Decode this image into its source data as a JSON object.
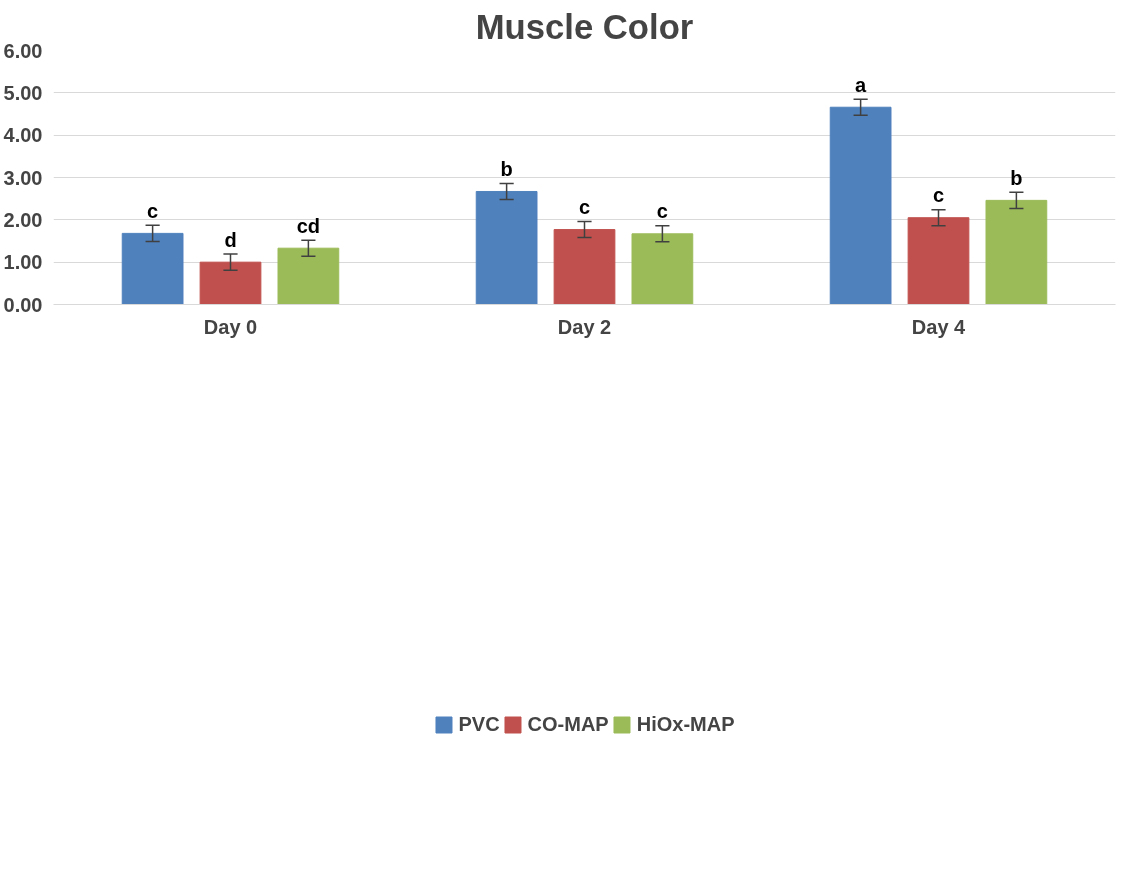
{
  "chart_data": {
    "type": "bar",
    "title": "Muscle Color",
    "categories": [
      "Day 0",
      "Day 2",
      "Day 4"
    ],
    "series": [
      {
        "name": "PVC",
        "color": "#4f81bd",
        "values": [
          1.68,
          2.67,
          4.66
        ],
        "errors": [
          0.19,
          0.19,
          0.19
        ],
        "value_labels": [
          "c",
          "b",
          "a"
        ]
      },
      {
        "name": "CO-MAP",
        "color": "#c0504d",
        "values": [
          1.0,
          1.77,
          2.05
        ],
        "errors": [
          0.19,
          0.19,
          0.19
        ],
        "value_labels": [
          "d",
          "c",
          "c"
        ]
      },
      {
        "name": "HiOx-MAP",
        "color": "#9bbb59",
        "values": [
          1.33,
          1.67,
          2.46
        ],
        "errors": [
          0.19,
          0.19,
          0.19
        ],
        "value_labels": [
          "cd",
          "c",
          "b"
        ]
      }
    ],
    "ylim": [
      0,
      6
    ],
    "yticks": [
      {
        "value": 0,
        "label": "0.00"
      },
      {
        "value": 1,
        "label": "1.00"
      },
      {
        "value": 2,
        "label": "2.00"
      },
      {
        "value": 3,
        "label": "3.00"
      },
      {
        "value": 4,
        "label": "4.00"
      },
      {
        "value": 5,
        "label": "5.00"
      },
      {
        "value": 6,
        "label": "6.00"
      }
    ],
    "grid": "y",
    "legend": "bottom"
  }
}
